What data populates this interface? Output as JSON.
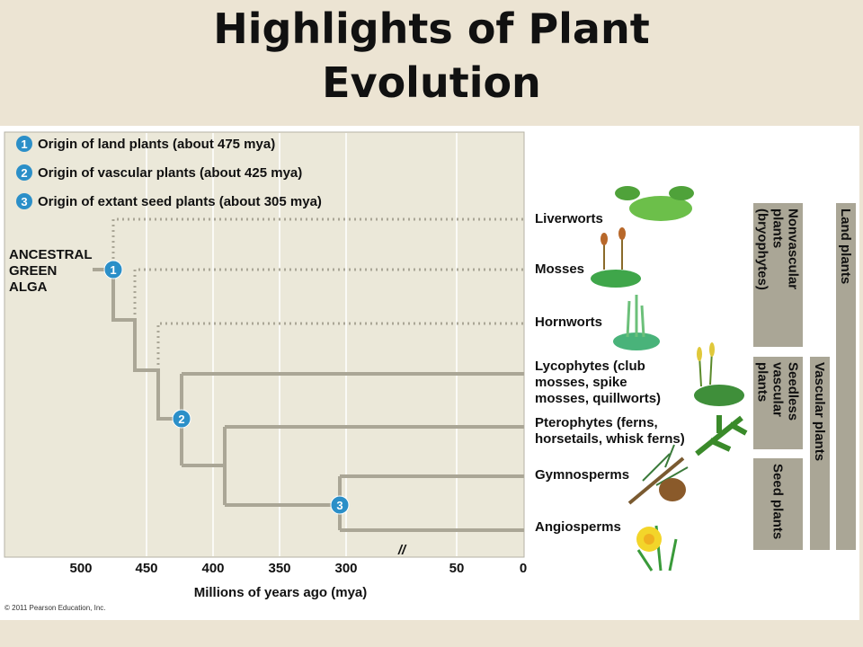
{
  "title": [
    "Highlights of Plant",
    "Evolution"
  ],
  "legend": [
    {
      "number": 1,
      "text": "Origin of land plants (about 475 mya)"
    },
    {
      "number": 2,
      "text": "Origin of vascular plants (about 425 mya)"
    },
    {
      "number": 3,
      "text": "Origin of extant seed plants (about 305 mya)"
    }
  ],
  "root_label": [
    "ANCESTRAL",
    "GREEN",
    "ALGA"
  ],
  "taxa": [
    {
      "label": [
        "Liverworts"
      ]
    },
    {
      "label": [
        "Mosses"
      ]
    },
    {
      "label": [
        "Hornworts"
      ]
    },
    {
      "label": [
        "Lycophytes (club",
        "mosses, spike",
        "mosses, quillworts)"
      ]
    },
    {
      "label": [
        "Pterophytes (ferns,",
        "horsetails, whisk ferns)"
      ]
    },
    {
      "label": [
        "Gymnosperms"
      ]
    },
    {
      "label": [
        "Angiosperms"
      ]
    }
  ],
  "groups": [
    {
      "label": [
        "Nonvascular",
        "plants",
        "(bryophytes)"
      ]
    },
    {
      "label": [
        "Seedless",
        "vascular",
        "plants"
      ]
    },
    {
      "label": [
        "Seed plants"
      ]
    },
    {
      "label": [
        "Vascular plants"
      ]
    },
    {
      "label": [
        "Land plants"
      ]
    }
  ],
  "axis": {
    "ticks": [
      500,
      450,
      400,
      350,
      300,
      50,
      0
    ],
    "break": "//",
    "label": "Millions of years ago (mya)"
  },
  "copyright": "© 2011 Pearson Education, Inc."
}
